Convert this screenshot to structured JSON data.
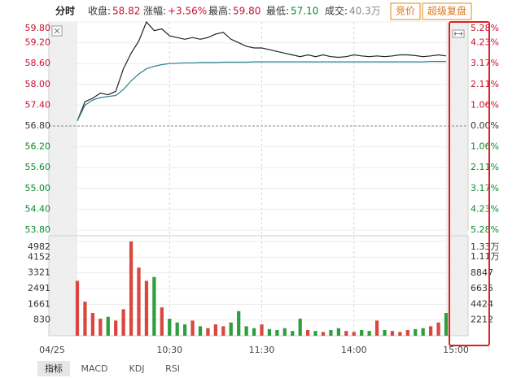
{
  "header": {
    "title": "分时",
    "items": [
      {
        "label": "收盘:",
        "value": "58.82"
      },
      {
        "label": "涨幅:",
        "value": "+3.56%"
      },
      {
        "label": "最高:",
        "value": "59.80"
      },
      {
        "label": "最低:",
        "value": "57.10"
      },
      {
        "label": "成交:",
        "value": "40.3万"
      }
    ],
    "buttons": [
      "竞价",
      "超级复盘"
    ]
  },
  "tabs": [
    "指标",
    "MACD",
    "KDJ",
    "RSI"
  ],
  "chart_data": [
    {
      "type": "line",
      "x": [
        "09:30",
        "09:35",
        "09:40",
        "09:45",
        "09:50",
        "09:55",
        "10:00",
        "10:05",
        "10:10",
        "10:15",
        "10:20",
        "10:25",
        "10:30",
        "10:35",
        "10:40",
        "10:45",
        "10:50",
        "10:55",
        "11:00",
        "11:05",
        "11:10",
        "11:15",
        "11:20",
        "11:25",
        "11:30",
        "13:05",
        "13:10",
        "13:15",
        "13:20",
        "13:25",
        "13:30",
        "13:35",
        "13:40",
        "13:45",
        "13:50",
        "13:55",
        "14:00",
        "14:05",
        "14:10",
        "14:15",
        "14:20",
        "14:25",
        "14:30",
        "14:35",
        "14:40",
        "14:45",
        "14:50",
        "14:55",
        "15:00"
      ],
      "series": [
        {
          "color": "#222222",
          "values": [
            56.95,
            57.5,
            57.6,
            57.75,
            57.7,
            57.8,
            58.45,
            58.9,
            59.25,
            59.8,
            59.55,
            59.6,
            59.4,
            59.35,
            59.3,
            59.35,
            59.3,
            59.35,
            59.45,
            59.5,
            59.3,
            59.2,
            59.1,
            59.05,
            59.05,
            59.0,
            58.95,
            58.9,
            58.85,
            58.8,
            58.85,
            58.8,
            58.85,
            58.8,
            58.78,
            58.8,
            58.85,
            58.82,
            58.8,
            58.82,
            58.8,
            58.82,
            58.85,
            58.85,
            58.83,
            58.8,
            58.82,
            58.85,
            58.82
          ]
        },
        {
          "color": "#2a7f8f",
          "values": [
            56.95,
            57.4,
            57.55,
            57.62,
            57.65,
            57.68,
            57.85,
            58.1,
            58.3,
            58.45,
            58.52,
            58.57,
            58.6,
            58.61,
            58.62,
            58.62,
            58.63,
            58.63,
            58.63,
            58.64,
            58.64,
            58.64,
            58.64,
            58.65,
            58.65,
            58.65,
            58.65,
            58.65,
            58.65,
            58.65,
            58.65,
            58.65,
            58.65,
            58.65,
            58.65,
            58.65,
            58.65,
            58.65,
            58.65,
            58.65,
            58.65,
            58.65,
            58.65,
            58.65,
            58.65,
            58.65,
            58.66,
            58.66,
            58.66
          ]
        }
      ],
      "ylim": [
        53.8,
        59.8
      ],
      "yticks": [
        {
          "value": 53.8,
          "label": "53.80"
        },
        {
          "value": 54.4,
          "label": "54.40"
        },
        {
          "value": 55,
          "label": "55.00"
        },
        {
          "value": 55.6,
          "label": "55.60"
        },
        {
          "value": 56.2,
          "label": "56.20"
        },
        {
          "value": 56.8,
          "label": "56.80"
        },
        {
          "value": 57.4,
          "label": "57.40"
        },
        {
          "value": 58,
          "label": "58.00"
        },
        {
          "value": 58.6,
          "label": "58.60"
        },
        {
          "value": 59.2,
          "label": "59.20"
        },
        {
          "value": 59.8,
          "label": "59.80"
        }
      ],
      "y2lim": [
        -5.28,
        5.28
      ],
      "y2ticks": [
        {
          "value": -5.28,
          "label": "5.28%"
        },
        {
          "value": -4.23,
          "label": "4.23%"
        },
        {
          "value": -3.17,
          "label": "3.17%"
        },
        {
          "value": -2.11,
          "label": "2.11%"
        },
        {
          "value": -1.06,
          "label": "1.06%"
        },
        {
          "value": 0,
          "label": "0.00%"
        },
        {
          "value": 1.06,
          "label": "1.06%"
        },
        {
          "value": 2.11,
          "label": "2.11%"
        },
        {
          "value": 3.17,
          "label": "3.17%"
        },
        {
          "value": 4.23,
          "label": "4.23%"
        },
        {
          "value": 5.28,
          "label": "5.28%"
        }
      ],
      "xticks": [
        "04/25",
        "10:30",
        "11:30",
        "14:00",
        "15:00"
      ],
      "up_color": "#c8102e",
      "down_color": "#0a8a2a",
      "flat_color": "#333333",
      "grid": true
    },
    {
      "type": "bar",
      "x": [
        "09:30",
        "09:35",
        "09:40",
        "09:45",
        "09:50",
        "09:55",
        "10:00",
        "10:05",
        "10:10",
        "10:15",
        "10:20",
        "10:25",
        "10:30",
        "10:35",
        "10:40",
        "10:45",
        "10:50",
        "10:55",
        "11:00",
        "11:05",
        "11:10",
        "11:15",
        "11:20",
        "11:25",
        "11:30",
        "13:05",
        "13:10",
        "13:15",
        "13:20",
        "13:25",
        "13:30",
        "13:35",
        "13:40",
        "13:45",
        "13:50",
        "13:55",
        "14:00",
        "14:05",
        "14:10",
        "14:15",
        "14:20",
        "14:25",
        "14:30",
        "14:35",
        "14:40",
        "14:45",
        "14:50",
        "14:55",
        "15:00"
      ],
      "values": [
        2900,
        1800,
        1200,
        900,
        1000,
        800,
        1400,
        4982,
        3600,
        2900,
        3100,
        1500,
        900,
        700,
        600,
        800,
        500,
        400,
        600,
        500,
        700,
        1300,
        500,
        400,
        600,
        350,
        300,
        400,
        250,
        900,
        300,
        250,
        200,
        300,
        400,
        250,
        200,
        300,
        250,
        800,
        300,
        250,
        200,
        300,
        350,
        400,
        500,
        700,
        1200
      ],
      "ylim": [
        0,
        4982
      ],
      "yticks": [
        830,
        1661,
        2491,
        3321,
        4152,
        4982
      ],
      "y2lim": [
        0,
        13300
      ],
      "y2ticks": [
        2212,
        4424,
        6635,
        8847,
        {
          "value": 11100,
          "label": "1.11万"
        },
        {
          "value": 13300,
          "label": "1.33万"
        }
      ],
      "up_color": "#d9473f",
      "down_color": "#2e9e3e",
      "grid": true
    }
  ]
}
